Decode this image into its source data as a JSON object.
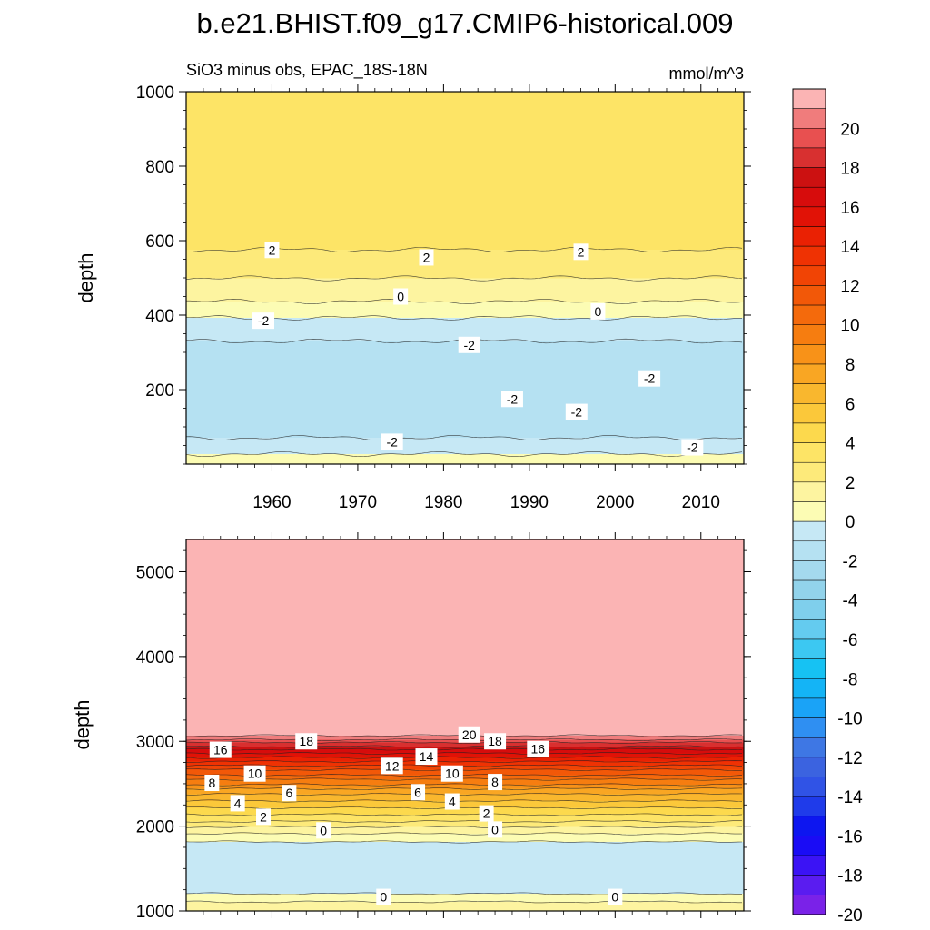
{
  "figure": {
    "title": "b.e21.BHIST.f09_g17.CMIP6-historical.009",
    "subtitle": "SiO3 minus obs, EPAC_18S-18N",
    "units": "mmol/m^3"
  },
  "colorbar": {
    "levels": [
      -21,
      -20,
      -19,
      -18,
      -17,
      -16,
      -15,
      -14,
      -13,
      -12,
      -11,
      -10,
      -9,
      -8,
      -7,
      -6,
      -5,
      -4,
      -3,
      -2,
      -1,
      0,
      1,
      2,
      3,
      4,
      5,
      6,
      7,
      8,
      9,
      10,
      11,
      12,
      13,
      14,
      15,
      16,
      17,
      18,
      19,
      20,
      21
    ],
    "colors": [
      "#7a22e8",
      "#5a1cf0",
      "#3b13f5",
      "#1a0cf5",
      "#0d16f0",
      "#1f3bea",
      "#3053e6",
      "#3b63e0",
      "#3e77e4",
      "#2f8ff2",
      "#1aa3f7",
      "#14b4f6",
      "#16c2f3",
      "#3cc8f2",
      "#64cbef",
      "#7fcfec",
      "#92d3eb",
      "#a4d9ee",
      "#b5e1f2",
      "#c6e8f5",
      "#fcfcb4",
      "#fdf4a0",
      "#fdea7a",
      "#fde466",
      "#fcd94d",
      "#fbc83a",
      "#f9b72e",
      "#f9a623",
      "#f89218",
      "#f67d10",
      "#f46a0c",
      "#f25808",
      "#f14405",
      "#ef3203",
      "#ea2103",
      "#e11206",
      "#d70c0c",
      "#cc1111",
      "#d83030",
      "#e85050",
      "#f07c7c",
      "#fbb4b4"
    ],
    "tick_labels": [
      "20",
      "18",
      "16",
      "14",
      "12",
      "10",
      "8",
      "6",
      "4",
      "2",
      "0",
      "-2",
      "-4",
      "-6",
      "-8",
      "-10",
      "-12",
      "-14",
      "-16",
      "-18",
      "-20"
    ]
  },
  "chart_data": [
    {
      "type": "heatmap",
      "panel": "upper",
      "title": "SiO3 minus obs, EPAC_18S-18N",
      "units": "mmol/m^3",
      "xlabel": "",
      "ylabel": "depth",
      "xlim": [
        1950,
        2015
      ],
      "ylim": [
        1000,
        0
      ],
      "x_ticks": [
        1960,
        1970,
        1980,
        1990,
        2000,
        2010
      ],
      "x_tick_labels": [
        "1960",
        "1970",
        "1980",
        "1990",
        "2000",
        "2010"
      ],
      "y_ticks": [
        200,
        400,
        600,
        800,
        1000
      ],
      "y_tick_labels": [
        "200",
        "400",
        "600",
        "800",
        "1000"
      ],
      "depth_profile": [
        {
          "depth": 5,
          "value": -0.5
        },
        {
          "depth": 40,
          "value": -1.3
        },
        {
          "depth": 100,
          "value": -2.6
        },
        {
          "depth": 200,
          "value": -3.0
        },
        {
          "depth": 300,
          "value": -2.6
        },
        {
          "depth": 360,
          "value": -1.5
        },
        {
          "depth": 420,
          "value": -0.6
        },
        {
          "depth": 450,
          "value": 0.3
        },
        {
          "depth": 520,
          "value": 1.3
        },
        {
          "depth": 600,
          "value": 2.3
        },
        {
          "depth": 800,
          "value": 3.0
        },
        {
          "depth": 1000,
          "value": 2.5
        }
      ],
      "contour_labels": [
        {
          "text": "-2",
          "x": 1974,
          "depth": 60
        },
        {
          "text": "-2",
          "x": 1983,
          "depth": 320
        },
        {
          "text": "-2",
          "x": 1988,
          "depth": 175
        },
        {
          "text": "-2",
          "x": 1995.5,
          "depth": 140
        },
        {
          "text": "-2",
          "x": 2004,
          "depth": 230
        },
        {
          "text": "-2",
          "x": 2009,
          "depth": 45
        },
        {
          "text": "-2",
          "x": 1959,
          "depth": 385
        },
        {
          "text": "0",
          "x": 1975,
          "depth": 450
        },
        {
          "text": "0",
          "x": 1998,
          "depth": 410
        },
        {
          "text": "2",
          "x": 1960,
          "depth": 575
        },
        {
          "text": "2",
          "x": 1978,
          "depth": 555
        },
        {
          "text": "2",
          "x": 1996,
          "depth": 570
        }
      ]
    },
    {
      "type": "heatmap",
      "panel": "lower",
      "title": "",
      "xlabel": "",
      "ylabel": "depth",
      "xlim": [
        1950,
        2015
      ],
      "ylim": [
        5380,
        1000
      ],
      "x_ticks": [
        1960,
        1970,
        1980,
        1990,
        2000,
        2010
      ],
      "x_tick_labels": [],
      "y_ticks": [
        1000,
        2000,
        3000,
        4000,
        5000
      ],
      "y_tick_labels": [
        "1000",
        "2000",
        "3000",
        "4000",
        "5000"
      ],
      "depth_profile": [
        {
          "depth": 1000,
          "value": 0.6
        },
        {
          "depth": 1100,
          "value": 0.2
        },
        {
          "depth": 1150,
          "value": -0.6
        },
        {
          "depth": 1250,
          "value": -1.2
        },
        {
          "depth": 1800,
          "value": -1.3
        },
        {
          "depth": 1880,
          "value": -0.4
        },
        {
          "depth": 1940,
          "value": 0.3
        },
        {
          "depth": 2050,
          "value": 1.8
        },
        {
          "depth": 2200,
          "value": 3.6
        },
        {
          "depth": 2400,
          "value": 6.2
        },
        {
          "depth": 2550,
          "value": 8.8
        },
        {
          "depth": 2700,
          "value": 11.5
        },
        {
          "depth": 2850,
          "value": 14.5
        },
        {
          "depth": 2950,
          "value": 17.0
        },
        {
          "depth": 3050,
          "value": 19.5
        },
        {
          "depth": 3120,
          "value": 21.0
        },
        {
          "depth": 5380,
          "value": 21.0
        }
      ],
      "contour_labels": [
        {
          "text": "0",
          "x": 1973,
          "depth": 1165
        },
        {
          "text": "0",
          "x": 2000,
          "depth": 1165
        },
        {
          "text": "0",
          "x": 1966,
          "depth": 1950
        },
        {
          "text": "0",
          "x": 1986,
          "depth": 1960
        },
        {
          "text": "2",
          "x": 1959,
          "depth": 2110
        },
        {
          "text": "2",
          "x": 1985,
          "depth": 2150
        },
        {
          "text": "4",
          "x": 1956,
          "depth": 2270
        },
        {
          "text": "4",
          "x": 1981,
          "depth": 2290
        },
        {
          "text": "6",
          "x": 1962,
          "depth": 2390
        },
        {
          "text": "6",
          "x": 1977,
          "depth": 2400
        },
        {
          "text": "8",
          "x": 1953,
          "depth": 2510
        },
        {
          "text": "8",
          "x": 1986,
          "depth": 2520
        },
        {
          "text": "10",
          "x": 1958,
          "depth": 2620
        },
        {
          "text": "10",
          "x": 1981,
          "depth": 2620
        },
        {
          "text": "12",
          "x": 1974,
          "depth": 2710
        },
        {
          "text": "14",
          "x": 1978,
          "depth": 2820
        },
        {
          "text": "16",
          "x": 1954,
          "depth": 2900
        },
        {
          "text": "16",
          "x": 1991,
          "depth": 2910
        },
        {
          "text": "18",
          "x": 1964,
          "depth": 3000
        },
        {
          "text": "18",
          "x": 1986,
          "depth": 3000
        },
        {
          "text": "20",
          "x": 1983,
          "depth": 3080
        }
      ]
    }
  ]
}
